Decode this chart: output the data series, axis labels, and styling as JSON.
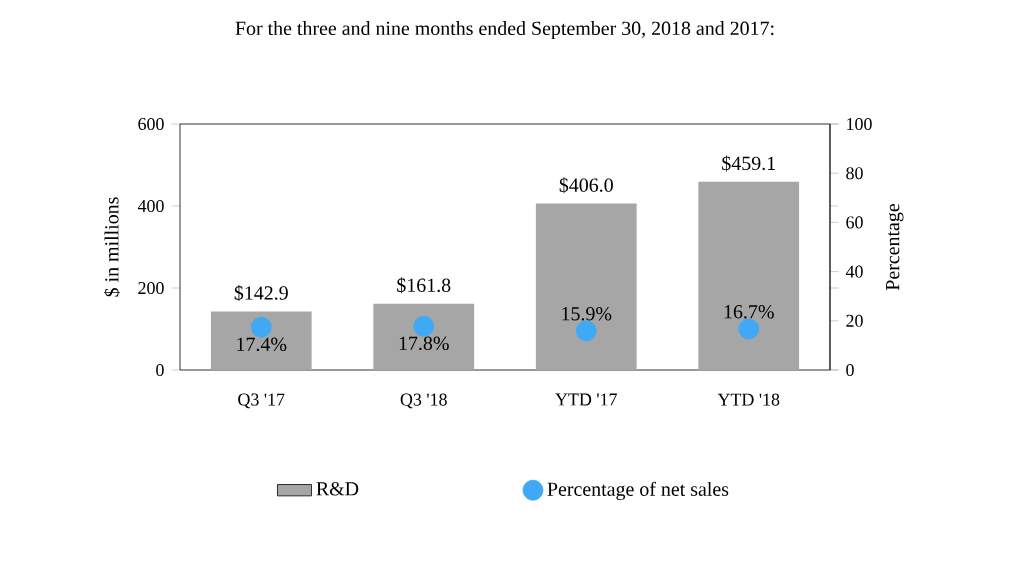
{
  "chart_data": {
    "type": "bar",
    "title": "For the three and nine months ended September 30, 2018 and 2017:",
    "ylabel": "$ in millions",
    "y2label": "Percentage",
    "categories": [
      "Q3 '17",
      "Q3 '18",
      "YTD '17",
      "YTD '18"
    ],
    "series": [
      {
        "name": "R&D",
        "color": "#a6a6a6",
        "values": [
          142.9,
          161.8,
          406.0,
          459.1
        ],
        "value_labels": [
          "$142.9",
          "$161.8",
          "$406.0",
          "$459.1"
        ]
      },
      {
        "name": "Percentage of net sales",
        "type": "scatter",
        "axis": "y2",
        "marker": "circle",
        "color": "#3fa9f5",
        "values": [
          17.4,
          17.8,
          15.9,
          16.7
        ],
        "value_labels": [
          "17.4%",
          "17.8%",
          "15.9%",
          "16.7%"
        ]
      }
    ],
    "ylim": [
      0,
      600
    ],
    "yticks": [
      0,
      200,
      400,
      600
    ],
    "y2lim": [
      0,
      100
    ],
    "y2ticks": [
      0,
      20,
      40,
      60,
      80,
      100
    ],
    "legend": "bottom"
  }
}
